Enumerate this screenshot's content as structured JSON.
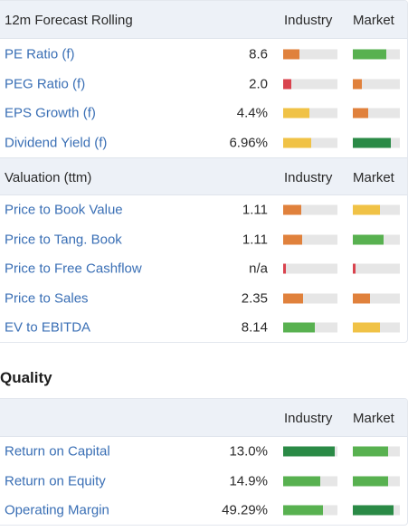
{
  "colors": {
    "orange": "#e0813c",
    "red": "#d9434e",
    "yellow": "#f0c246",
    "green": "#58b150",
    "dark_green": "#2a8a46",
    "link": "#3a6fb5"
  },
  "forecast": {
    "title": "12m Forecast Rolling",
    "col_industry": "Industry",
    "col_market": "Market",
    "rows": [
      {
        "label": "PE Ratio (f)",
        "value": "8.6",
        "industry": {
          "level": 0.3,
          "color": "#e0813c"
        },
        "market": {
          "level": 0.72,
          "color": "#58b150"
        }
      },
      {
        "label": "PEG Ratio (f)",
        "value": "2.0",
        "industry": {
          "level": 0.15,
          "color": "#d9434e"
        },
        "market": {
          "level": 0.2,
          "color": "#e0813c"
        }
      },
      {
        "label": "EPS Growth (f)",
        "value": "4.4%",
        "industry": {
          "level": 0.48,
          "color": "#f0c246"
        },
        "market": {
          "level": 0.32,
          "color": "#e0813c"
        }
      },
      {
        "label": "Dividend Yield (f)",
        "value": "6.96%",
        "industry": {
          "level": 0.52,
          "color": "#f0c246"
        },
        "market": {
          "level": 0.8,
          "color": "#2a8a46"
        }
      }
    ]
  },
  "valuation": {
    "title": "Valuation (ttm)",
    "col_industry": "Industry",
    "col_market": "Market",
    "rows": [
      {
        "label": "Price to Book Value",
        "value": "1.11",
        "industry": {
          "level": 0.33,
          "color": "#e0813c"
        },
        "market": {
          "level": 0.58,
          "color": "#f0c246"
        }
      },
      {
        "label": "Price to Tang. Book",
        "value": "1.11",
        "industry": {
          "level": 0.35,
          "color": "#e0813c"
        },
        "market": {
          "level": 0.65,
          "color": "#58b150"
        }
      },
      {
        "label": "Price to Free Cashflow",
        "value": "n/a",
        "industry": {
          "level": 0.05,
          "color": "#d9434e"
        },
        "market": {
          "level": 0.05,
          "color": "#d9434e"
        }
      },
      {
        "label": "Price to Sales",
        "value": "2.35",
        "industry": {
          "level": 0.37,
          "color": "#e0813c"
        },
        "market": {
          "level": 0.37,
          "color": "#e0813c"
        }
      },
      {
        "label": "EV to EBITDA",
        "value": "8.14",
        "industry": {
          "level": 0.58,
          "color": "#58b150"
        },
        "market": {
          "level": 0.58,
          "color": "#f0c246"
        }
      }
    ]
  },
  "quality": {
    "heading": "Quality",
    "title": "",
    "col_industry": "Industry",
    "col_market": "Market",
    "rows": [
      {
        "label": "Return on Capital",
        "value": "13.0%",
        "industry": {
          "level": 0.95,
          "color": "#2a8a46"
        },
        "market": {
          "level": 0.75,
          "color": "#58b150"
        }
      },
      {
        "label": "Return on Equity",
        "value": "14.9%",
        "industry": {
          "level": 0.68,
          "color": "#58b150"
        },
        "market": {
          "level": 0.75,
          "color": "#58b150"
        }
      },
      {
        "label": "Operating Margin",
        "value": "49.29%",
        "industry": {
          "level": 0.73,
          "color": "#58b150"
        },
        "market": {
          "level": 0.87,
          "color": "#2a8a46"
        }
      }
    ]
  }
}
